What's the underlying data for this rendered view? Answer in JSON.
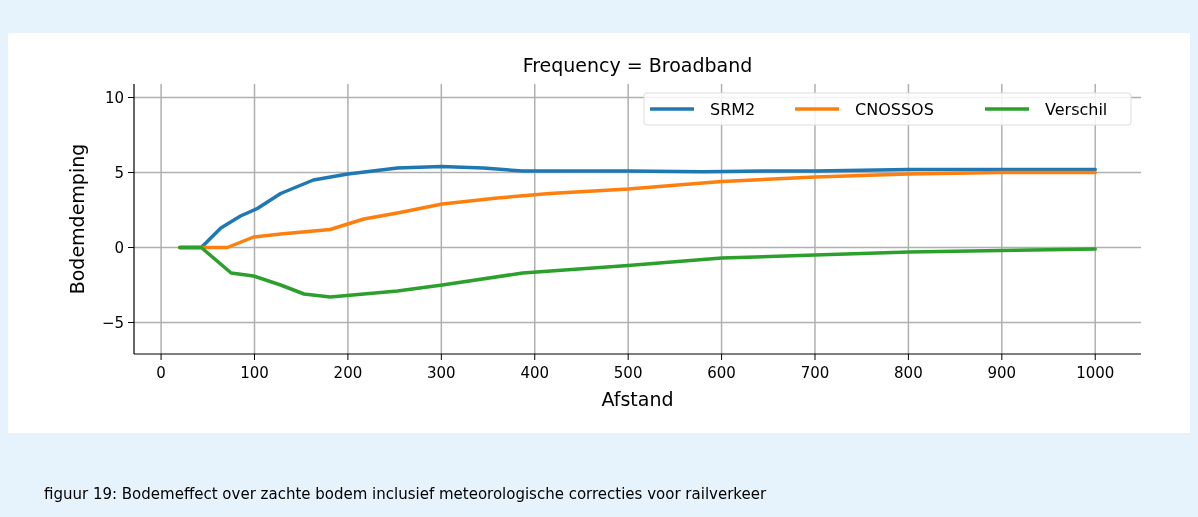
{
  "chart_data": {
    "type": "line",
    "title": "Frequency = Broadband",
    "xlabel": "Afstand",
    "ylabel": "Bodemdemping",
    "annotations": [
      "figuur 19: Bodemeffect over zachte bodem inclusief meteorologische correcties voor railverkeer"
    ],
    "xlim": [
      -29,
      1049
    ],
    "ylim": [
      -7.1,
      10.9
    ],
    "xticks": [
      0,
      100,
      200,
      300,
      400,
      500,
      600,
      700,
      800,
      900,
      1000
    ],
    "yticks": [
      {
        "value": -5,
        "label": "−5"
      },
      0,
      5,
      10
    ],
    "grid": true,
    "legend": "top right",
    "line_style": "solid",
    "marker": "none",
    "series": [
      {
        "name": "SRM2",
        "color": "#1f77b4",
        "x": [
          20,
          43,
          64,
          85,
          103,
          128,
          163,
          200,
          253,
          300,
          345,
          387,
          450,
          500,
          580,
          650,
          700,
          800,
          900,
          1000
        ],
        "values": [
          0,
          0,
          1.3,
          2.1,
          2.6,
          3.6,
          4.5,
          4.9,
          5.3,
          5.4,
          5.3,
          5.1,
          5.1,
          5.1,
          5.05,
          5.1,
          5.1,
          5.2,
          5.2,
          5.2
        ]
      },
      {
        "name": "CNOSSOS",
        "color": "#ff7f0e",
        "x": [
          20,
          71,
          99,
          128,
          181,
          217,
          253,
          301,
          360,
          416,
          500,
          600,
          700,
          800,
          900,
          1000
        ],
        "values": [
          0,
          0,
          0.7,
          0.9,
          1.2,
          1.9,
          2.3,
          2.9,
          3.3,
          3.6,
          3.9,
          4.4,
          4.7,
          4.9,
          5,
          5
        ]
      },
      {
        "name": "Verschil",
        "color": "#2ca02c",
        "x": [
          20,
          43,
          75,
          99,
          128,
          153,
          181,
          253,
          301,
          387,
          500,
          600,
          700,
          800,
          900,
          1000
        ],
        "values": [
          0,
          0,
          -1.7,
          -1.9,
          -2.5,
          -3.1,
          -3.3,
          -2.9,
          -2.5,
          -1.7,
          -1.2,
          -0.7,
          -0.5,
          -0.3,
          -0.2,
          -0.1
        ]
      }
    ]
  }
}
